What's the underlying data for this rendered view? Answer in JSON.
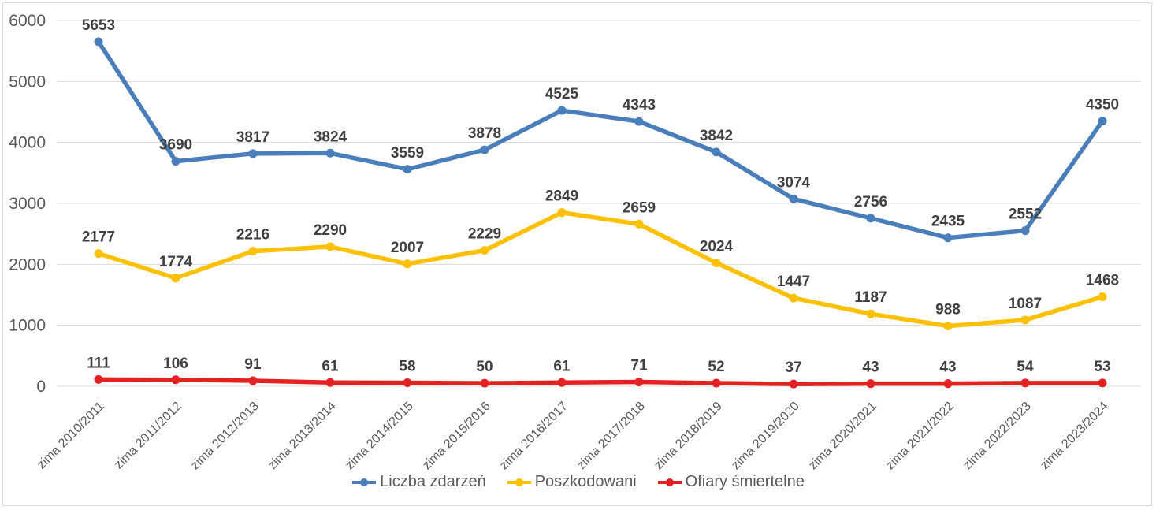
{
  "chart_data": {
    "type": "line",
    "title": "",
    "xlabel": "",
    "ylabel": "",
    "categories": [
      "zima 2010/2011",
      "zima 2011/2012",
      "zima 2012/2013",
      "zima 2013/2014",
      "zima 2014/2015",
      "zima 2015/2016",
      "zima 2016/2017",
      "zima 2017/2018",
      "zima 2018/2019",
      "zima 2019/2020",
      "zima 2020/2021",
      "zima 2021/2022",
      "zima 2022/2023",
      "zima 2023/2024"
    ],
    "series": [
      {
        "name": "Liczba zdarzeń",
        "color": "#4a7ebb",
        "values": [
          5653,
          3690,
          3817,
          3824,
          3559,
          3878,
          4525,
          4343,
          3842,
          3074,
          2756,
          2435,
          2552,
          4350
        ]
      },
      {
        "name": "Poszkodowani",
        "color": "#ffc000",
        "values": [
          2177,
          1774,
          2216,
          2290,
          2007,
          2229,
          2849,
          2659,
          2024,
          1447,
          1187,
          988,
          1087,
          1468
        ]
      },
      {
        "name": "Ofiary śmiertelne",
        "color": "#e32121",
        "values": [
          111,
          106,
          91,
          61,
          58,
          50,
          61,
          71,
          52,
          37,
          43,
          43,
          54,
          53
        ]
      }
    ],
    "ylim": [
      0,
      6000
    ],
    "y_ticks": [
      0,
      1000,
      2000,
      3000,
      4000,
      5000,
      6000
    ],
    "grid": true,
    "data_labels": true,
    "legend_position": "bottom",
    "axis_text_color": "#595959",
    "gridline_color": "#d9d9d9",
    "data_label_color": "#404040"
  }
}
